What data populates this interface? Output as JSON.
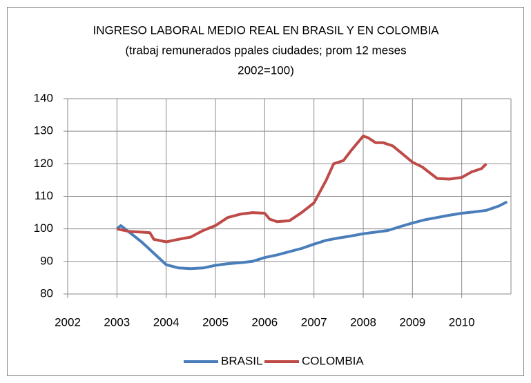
{
  "chart_data": {
    "type": "line",
    "title": [
      "INGRESO LABORAL MEDIO REAL EN BRASIL Y EN COLOMBIA",
      "(trabaj remunerados ppales ciudades; prom 12 meses",
      "2002=100)"
    ],
    "xlim": [
      2002,
      2011
    ],
    "xticks": [
      2002,
      2003,
      2004,
      2005,
      2006,
      2007,
      2008,
      2009,
      2010
    ],
    "ylim": [
      80,
      140
    ],
    "yticks": [
      80,
      90,
      100,
      110,
      120,
      130,
      140
    ],
    "grid": true,
    "legend": "bottom",
    "series": [
      {
        "name": "BRASIL",
        "color": "#4a7ebb",
        "x": [
          2003.0,
          2003.08,
          2003.25,
          2003.5,
          2003.75,
          2004.0,
          2004.25,
          2004.5,
          2004.75,
          2005.0,
          2005.25,
          2005.5,
          2005.75,
          2006.0,
          2006.25,
          2006.5,
          2006.75,
          2007.0,
          2007.25,
          2007.5,
          2007.75,
          2008.0,
          2008.25,
          2008.5,
          2008.75,
          2009.0,
          2009.25,
          2009.5,
          2009.75,
          2010.0,
          2010.25,
          2010.5,
          2010.75,
          2010.92
        ],
        "values": [
          100,
          101,
          99,
          96,
          92.5,
          89,
          88,
          87.8,
          88,
          88.8,
          89.3,
          89.6,
          90,
          91.2,
          92,
          93,
          94,
          95.3,
          96.5,
          97.2,
          97.8,
          98.5,
          99,
          99.5,
          100.7,
          101.8,
          102.8,
          103.5,
          104.2,
          104.8,
          105.2,
          105.7,
          107,
          108.3
        ]
      },
      {
        "name": "COLOMBIA",
        "color": "#be4b48",
        "x": [
          2003.0,
          2003.25,
          2003.5,
          2003.67,
          2003.75,
          2004.0,
          2004.25,
          2004.5,
          2004.75,
          2005.0,
          2005.25,
          2005.5,
          2005.75,
          2006.0,
          2006.1,
          2006.25,
          2006.5,
          2006.75,
          2007.0,
          2007.25,
          2007.4,
          2007.6,
          2007.75,
          2008.0,
          2008.1,
          2008.25,
          2008.4,
          2008.6,
          2008.8,
          2009.0,
          2009.2,
          2009.5,
          2009.75,
          2010.0,
          2010.2,
          2010.4,
          2010.5
        ],
        "values": [
          100,
          99.2,
          99,
          98.8,
          96.8,
          96,
          96.8,
          97.5,
          99.5,
          101,
          103.5,
          104.5,
          105,
          104.8,
          103,
          102.2,
          102.5,
          105,
          108,
          115,
          120,
          121,
          124,
          128.5,
          128,
          126.5,
          126.5,
          125.5,
          123,
          120.5,
          119,
          115.5,
          115.3,
          115.8,
          117.5,
          118.5,
          120
        ]
      }
    ]
  }
}
